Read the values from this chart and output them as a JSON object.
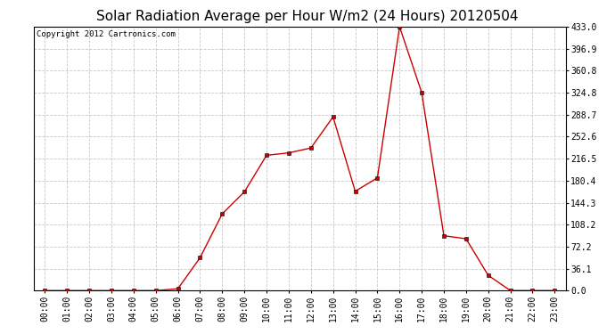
{
  "title": "Solar Radiation Average per Hour W/m2 (24 Hours) 20120504",
  "copyright": "Copyright 2012 Cartronics.com",
  "hours": [
    "00:00",
    "01:00",
    "02:00",
    "03:00",
    "04:00",
    "05:00",
    "06:00",
    "07:00",
    "08:00",
    "09:00",
    "10:00",
    "11:00",
    "12:00",
    "13:00",
    "14:00",
    "15:00",
    "16:00",
    "17:00",
    "18:00",
    "19:00",
    "20:00",
    "21:00",
    "22:00",
    "23:00"
  ],
  "values": [
    0.0,
    0.0,
    0.0,
    0.0,
    0.0,
    0.0,
    3.0,
    54.0,
    126.0,
    162.0,
    222.0,
    226.0,
    234.0,
    285.0,
    163.0,
    185.0,
    433.0,
    324.8,
    90.0,
    85.0,
    25.0,
    0.0,
    0.0,
    0.0
  ],
  "line_color": "#cc0000",
  "marker": "s",
  "marker_size": 2.5,
  "background_color": "#ffffff",
  "plot_bg_color": "#ffffff",
  "grid_color": "#c8c8c8",
  "ytick_labels": [
    "0.0",
    "36.1",
    "72.2",
    "108.2",
    "144.3",
    "180.4",
    "216.5",
    "252.6",
    "288.7",
    "324.8",
    "360.8",
    "396.9",
    "433.0"
  ],
  "ytick_values": [
    0.0,
    36.1,
    72.2,
    108.2,
    144.3,
    180.4,
    216.5,
    252.6,
    288.7,
    324.8,
    360.8,
    396.9,
    433.0
  ],
  "ylim": [
    0.0,
    433.0
  ],
  "title_fontsize": 11,
  "copyright_fontsize": 6.5,
  "tick_fontsize": 7
}
